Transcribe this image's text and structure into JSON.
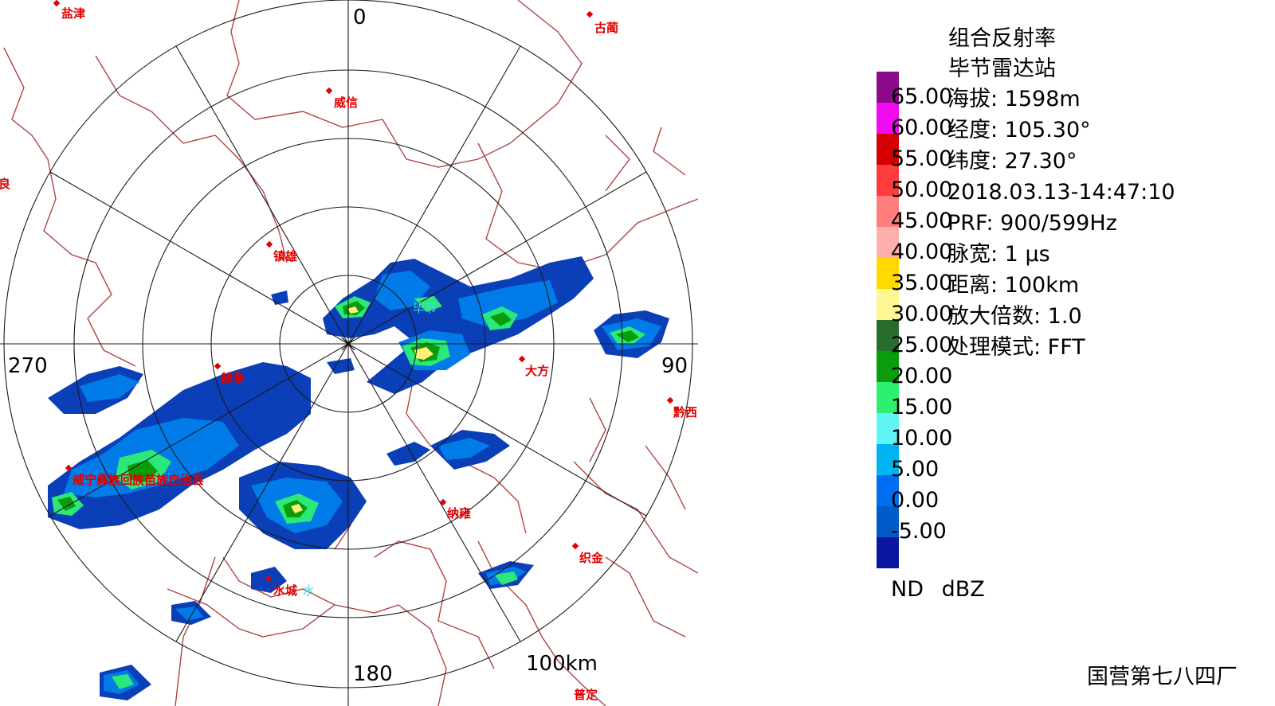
{
  "legend": {
    "title": "组合反射率",
    "station": "毕节雷达站",
    "scale": [
      {
        "value": "65.00",
        "color": "#8b0a8c"
      },
      {
        "value": "60.00",
        "color": "#f00af0"
      },
      {
        "value": "55.00",
        "color": "#d40000"
      },
      {
        "value": "50.00",
        "color": "#ff3b3b"
      },
      {
        "value": "45.00",
        "color": "#ff7d7d"
      },
      {
        "value": "40.00",
        "color": "#ffaeae"
      },
      {
        "value": "35.00",
        "color": "#ffd900"
      },
      {
        "value": "30.00",
        "color": "#fff794"
      },
      {
        "value": "25.00",
        "color": "#276e2c"
      },
      {
        "value": "20.00",
        "color": "#0a9c0a"
      },
      {
        "value": "15.00",
        "color": "#2cf06e"
      },
      {
        "value": "10.00",
        "color": "#5ff5f5"
      },
      {
        "value": "5.00",
        "color": "#00b4f0"
      },
      {
        "value": "0.00",
        "color": "#006ef0"
      },
      {
        "value": "-5.00",
        "color": "#005ac8"
      },
      {
        "value": "",
        "color": "#0a16a0"
      }
    ],
    "info": [
      "海拔:  1598m",
      "经度: 105.30°",
      "纬度: 27.30°",
      "2018.03.13-14:47:10",
      "PRF: 900/599Hz",
      "脉宽:  1 μs",
      "距离:  100km",
      "放大倍数: 1.0",
      "处理模式:   FFT"
    ],
    "nd_label": "ND",
    "unit": "dBZ"
  },
  "radar": {
    "azimuth_labels": {
      "north": "0",
      "east": "90",
      "south": "180",
      "west": "270"
    },
    "range_label": "100km",
    "station_marker": "毕节",
    "cities": [
      {
        "name": "盐津"
      },
      {
        "name": "古蔺"
      },
      {
        "name": "威信"
      },
      {
        "name": "彝良"
      },
      {
        "name": "镇雄"
      },
      {
        "name": "大方"
      },
      {
        "name": "赫章"
      },
      {
        "name": "黔西"
      },
      {
        "name": "威宁彝族回族苗族自治县"
      },
      {
        "name": "纳雍"
      },
      {
        "name": "织金"
      },
      {
        "name": "水城"
      },
      {
        "name": "普定"
      }
    ],
    "water_label": "水"
  },
  "footer": {
    "credit": "国营第七八四厂"
  }
}
